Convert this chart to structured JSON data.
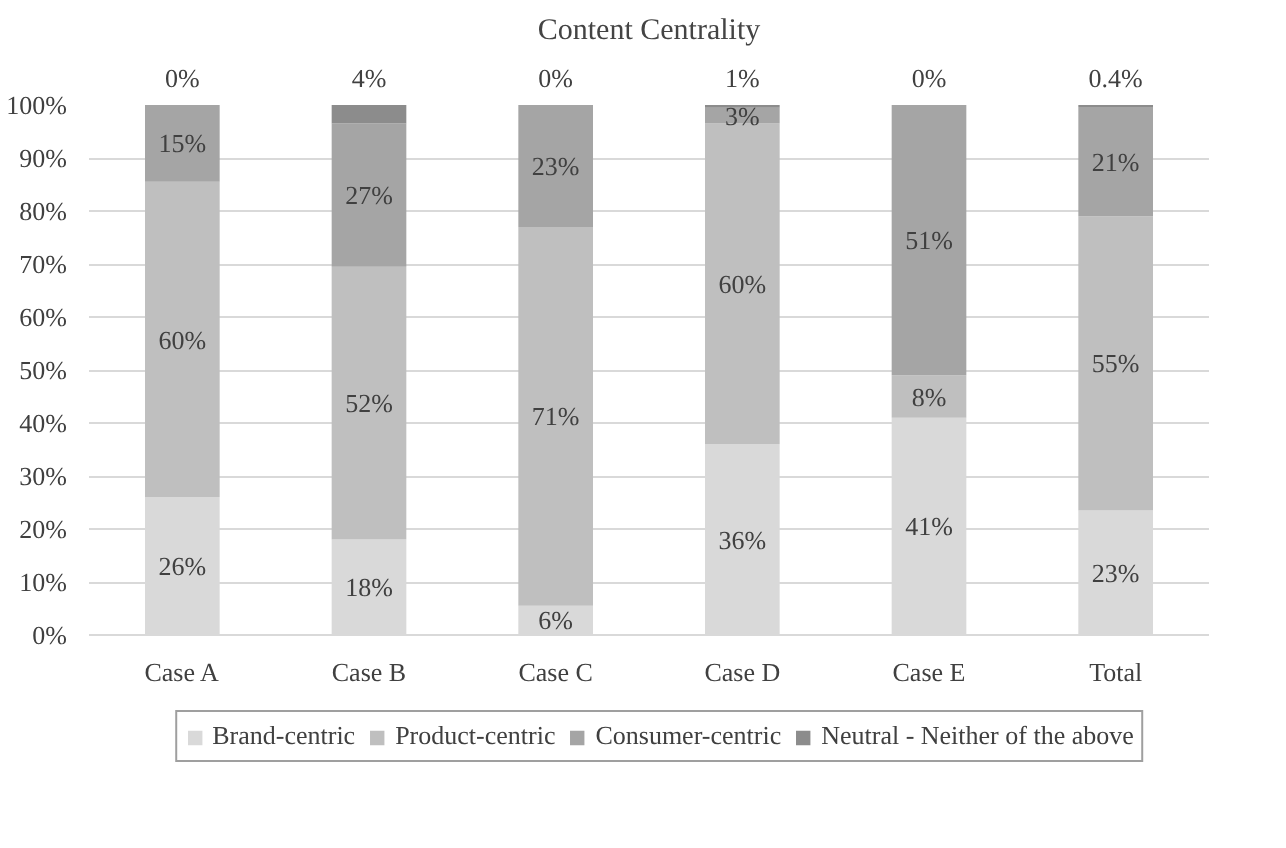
{
  "chart_data": {
    "type": "bar",
    "title": "Content Centrality",
    "stacked": true,
    "categories": [
      "Case A",
      "Case B",
      "Case C",
      "Case D",
      "Case E",
      "Total"
    ],
    "series": [
      {
        "name": "Brand-centric",
        "color": "#d9d9d9",
        "values": [
          26,
          18,
          5.5,
          36,
          41,
          23.5
        ],
        "value_labels": [
          "26%",
          "18%",
          "6%",
          "36%",
          "41%",
          "23%"
        ]
      },
      {
        "name": "Product-centric",
        "color": "#bfbfbf",
        "values": [
          59.5,
          51.5,
          71.5,
          60.5,
          8,
          55.5
        ],
        "value_labels": [
          "60%",
          "52%",
          "71%",
          "60%",
          "8%",
          "55%"
        ]
      },
      {
        "name": "Consumer-centric",
        "color": "#a5a5a5",
        "values": [
          14.5,
          27,
          23,
          3,
          51,
          20.6
        ],
        "value_labels": [
          "15%",
          "27%",
          "23%",
          "3%",
          "51%",
          "21%"
        ]
      },
      {
        "name": "Neutral - Neither of the above",
        "color": "#8c8c8c",
        "values": [
          0,
          3.5,
          0,
          0.5,
          0,
          0.4
        ],
        "value_labels": [
          "0%",
          "4%",
          "0%",
          "1%",
          "0%",
          "0.4%"
        ]
      }
    ],
    "ylim": [
      0,
      100
    ],
    "yticks": [
      {
        "value": 0,
        "label": "0%"
      },
      {
        "value": 10,
        "label": "10%"
      },
      {
        "value": 20,
        "label": "20%"
      },
      {
        "value": 30,
        "label": "30%"
      },
      {
        "value": 40,
        "label": "40%"
      },
      {
        "value": 50,
        "label": "50%"
      },
      {
        "value": 60,
        "label": "60%"
      },
      {
        "value": 70,
        "label": "70%"
      },
      {
        "value": 80,
        "label": "80%"
      },
      {
        "value": 90,
        "label": "90%"
      },
      {
        "value": 100,
        "label": "100%"
      }
    ],
    "grid": "y",
    "legend": "bottom"
  }
}
